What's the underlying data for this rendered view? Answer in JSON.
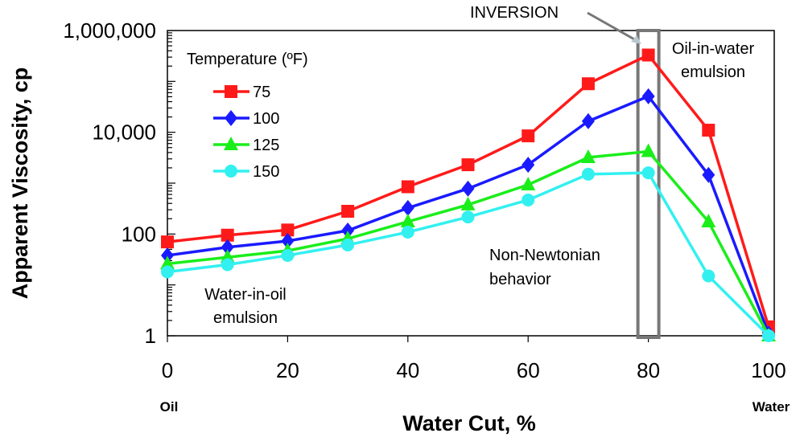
{
  "chart_data": {
    "type": "line",
    "xlabel": "Water Cut, %",
    "ylabel": "Apparent Viscosity, cp",
    "x": [
      0,
      10,
      20,
      30,
      40,
      50,
      60,
      70,
      80,
      90,
      100
    ],
    "xlim": [
      0,
      100
    ],
    "ylim": [
      1,
      1000000
    ],
    "yscale": "log",
    "grid": false,
    "x_ticks": [
      "0",
      "20",
      "40",
      "60",
      "80",
      "100"
    ],
    "y_ticks": [
      "1",
      "100",
      "10,000",
      "1,000,000"
    ],
    "x_end_labels": {
      "left": "Oil",
      "right": "Water"
    },
    "legend": {
      "title": "Temperature (ºF)",
      "placement": "top-left"
    },
    "series": [
      {
        "name": "75",
        "color": "#ff1a1a",
        "marker": "square",
        "values": [
          70,
          95,
          120,
          280,
          850,
          2300,
          8500,
          90000,
          330000,
          11000,
          1.5
        ]
      },
      {
        "name": "100",
        "color": "#1a1aff",
        "marker": "diamond",
        "values": [
          38,
          55,
          73,
          117,
          325,
          780,
          2300,
          16500,
          51000,
          1450,
          1.1
        ]
      },
      {
        "name": "125",
        "color": "#1aee1a",
        "marker": "triangle",
        "values": [
          26,
          35,
          47,
          81,
          175,
          376,
          930,
          3200,
          4200,
          175,
          1
        ]
      },
      {
        "name": "150",
        "color": "#33f0f0",
        "marker": "circle",
        "values": [
          18,
          25,
          38,
          61,
          109,
          216,
          467,
          1500,
          1600,
          15,
          1
        ]
      }
    ],
    "annotations": {
      "inversion": "INVERSION",
      "oil_in_water": [
        "Oil-in-water",
        "emulsion"
      ],
      "non_newtonian": [
        "Non-Newtonian",
        "behavior"
      ],
      "water_in_oil": [
        "Water-in-oil",
        "emulsion"
      ]
    },
    "inversion_x": 80
  }
}
